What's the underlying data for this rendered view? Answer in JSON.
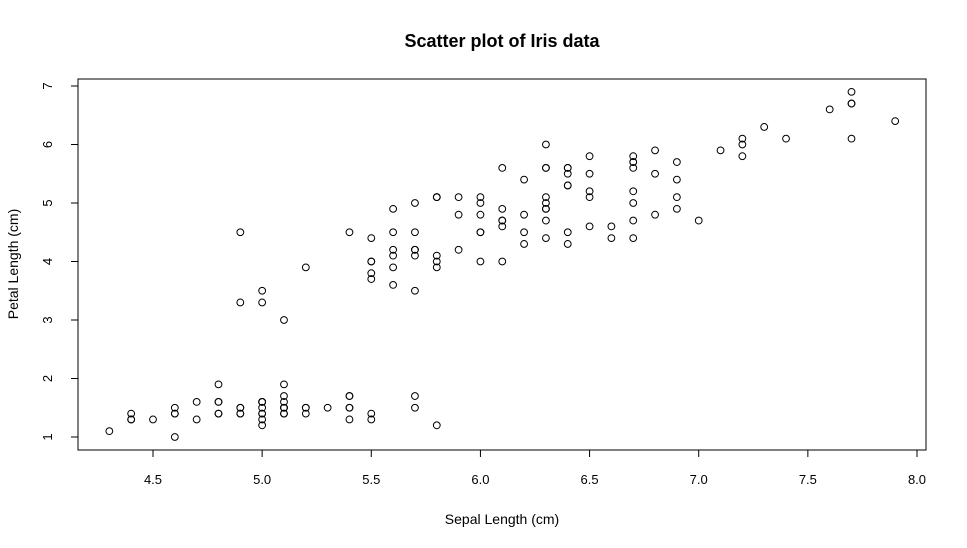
{
  "chart_data": {
    "type": "scatter",
    "title": "Scatter plot of Iris data",
    "xlabel": "Sepal Length (cm)",
    "ylabel": "Petal Length (cm)",
    "xlim": [
      4.3,
      7.9
    ],
    "ylim": [
      1.0,
      6.9
    ],
    "x_ticks": [
      "4.5",
      "5.0",
      "5.5",
      "6.0",
      "6.5",
      "7.0",
      "7.5",
      "8.0"
    ],
    "y_ticks": [
      "1",
      "2",
      "3",
      "4",
      "5",
      "6",
      "7"
    ],
    "grid": false,
    "legend": "none",
    "points": [
      [
        5.1,
        1.4
      ],
      [
        4.9,
        1.4
      ],
      [
        4.7,
        1.3
      ],
      [
        4.6,
        1.5
      ],
      [
        5.0,
        1.4
      ],
      [
        5.4,
        1.7
      ],
      [
        4.6,
        1.4
      ],
      [
        5.0,
        1.5
      ],
      [
        4.4,
        1.4
      ],
      [
        4.9,
        1.5
      ],
      [
        5.4,
        1.5
      ],
      [
        4.8,
        1.6
      ],
      [
        4.8,
        1.4
      ],
      [
        4.3,
        1.1
      ],
      [
        5.8,
        1.2
      ],
      [
        5.7,
        1.5
      ],
      [
        5.4,
        1.3
      ],
      [
        5.1,
        1.4
      ],
      [
        5.7,
        1.7
      ],
      [
        5.1,
        1.5
      ],
      [
        5.4,
        1.7
      ],
      [
        5.1,
        1.5
      ],
      [
        4.6,
        1.0
      ],
      [
        5.1,
        1.7
      ],
      [
        4.8,
        1.9
      ],
      [
        5.0,
        1.6
      ],
      [
        5.0,
        1.6
      ],
      [
        5.2,
        1.5
      ],
      [
        5.2,
        1.4
      ],
      [
        4.7,
        1.6
      ],
      [
        4.8,
        1.6
      ],
      [
        5.4,
        1.5
      ],
      [
        5.2,
        1.5
      ],
      [
        5.5,
        1.4
      ],
      [
        4.9,
        1.5
      ],
      [
        5.0,
        1.2
      ],
      [
        5.5,
        1.3
      ],
      [
        4.9,
        1.4
      ],
      [
        4.4,
        1.3
      ],
      [
        5.1,
        1.5
      ],
      [
        5.0,
        1.3
      ],
      [
        4.5,
        1.3
      ],
      [
        4.4,
        1.3
      ],
      [
        5.0,
        1.6
      ],
      [
        5.1,
        1.9
      ],
      [
        4.8,
        1.4
      ],
      [
        5.1,
        1.6
      ],
      [
        4.6,
        1.4
      ],
      [
        5.3,
        1.5
      ],
      [
        5.0,
        1.4
      ],
      [
        7.0,
        4.7
      ],
      [
        6.4,
        4.5
      ],
      [
        6.9,
        4.9
      ],
      [
        5.5,
        4.0
      ],
      [
        6.5,
        4.6
      ],
      [
        5.7,
        4.5
      ],
      [
        6.3,
        4.7
      ],
      [
        4.9,
        3.3
      ],
      [
        6.6,
        4.6
      ],
      [
        5.2,
        3.9
      ],
      [
        5.0,
        3.5
      ],
      [
        5.9,
        4.2
      ],
      [
        6.0,
        4.0
      ],
      [
        6.1,
        4.7
      ],
      [
        5.6,
        3.6
      ],
      [
        6.7,
        4.4
      ],
      [
        5.6,
        4.5
      ],
      [
        5.8,
        4.1
      ],
      [
        6.2,
        4.5
      ],
      [
        5.6,
        3.9
      ],
      [
        5.9,
        4.8
      ],
      [
        6.1,
        4.0
      ],
      [
        6.3,
        4.9
      ],
      [
        6.1,
        4.7
      ],
      [
        6.4,
        4.3
      ],
      [
        6.6,
        4.4
      ],
      [
        6.8,
        4.8
      ],
      [
        6.7,
        5.0
      ],
      [
        6.0,
        4.5
      ],
      [
        5.7,
        3.5
      ],
      [
        5.5,
        3.8
      ],
      [
        5.5,
        3.7
      ],
      [
        5.8,
        3.9
      ],
      [
        6.0,
        5.1
      ],
      [
        5.4,
        4.5
      ],
      [
        6.0,
        4.5
      ],
      [
        6.7,
        4.7
      ],
      [
        6.3,
        4.4
      ],
      [
        5.6,
        4.1
      ],
      [
        5.5,
        4.0
      ],
      [
        5.5,
        4.4
      ],
      [
        6.1,
        4.6
      ],
      [
        5.8,
        4.0
      ],
      [
        5.0,
        3.3
      ],
      [
        5.6,
        4.2
      ],
      [
        5.7,
        4.2
      ],
      [
        5.7,
        4.2
      ],
      [
        6.2,
        4.3
      ],
      [
        5.1,
        3.0
      ],
      [
        5.7,
        4.1
      ],
      [
        6.3,
        6.0
      ],
      [
        5.8,
        5.1
      ],
      [
        7.1,
        5.9
      ],
      [
        6.3,
        5.6
      ],
      [
        6.5,
        5.8
      ],
      [
        7.6,
        6.6
      ],
      [
        4.9,
        4.5
      ],
      [
        7.3,
        6.3
      ],
      [
        6.7,
        5.8
      ],
      [
        7.2,
        6.1
      ],
      [
        6.5,
        5.1
      ],
      [
        6.4,
        5.3
      ],
      [
        6.8,
        5.5
      ],
      [
        5.7,
        5.0
      ],
      [
        5.8,
        5.1
      ],
      [
        6.4,
        5.3
      ],
      [
        6.5,
        5.5
      ],
      [
        7.7,
        6.7
      ],
      [
        7.7,
        6.9
      ],
      [
        6.0,
        5.0
      ],
      [
        6.9,
        5.7
      ],
      [
        5.6,
        4.9
      ],
      [
        7.7,
        6.7
      ],
      [
        6.3,
        4.9
      ],
      [
        6.7,
        5.7
      ],
      [
        7.2,
        6.0
      ],
      [
        6.2,
        4.8
      ],
      [
        6.1,
        4.9
      ],
      [
        6.4,
        5.6
      ],
      [
        7.2,
        5.8
      ],
      [
        7.4,
        6.1
      ],
      [
        7.9,
        6.4
      ],
      [
        6.4,
        5.6
      ],
      [
        6.3,
        5.1
      ],
      [
        6.1,
        5.6
      ],
      [
        7.7,
        6.1
      ],
      [
        6.3,
        5.6
      ],
      [
        6.4,
        5.5
      ],
      [
        6.0,
        4.8
      ],
      [
        6.9,
        5.4
      ],
      [
        6.7,
        5.6
      ],
      [
        6.9,
        5.1
      ],
      [
        5.8,
        5.1
      ],
      [
        6.8,
        5.9
      ],
      [
        6.7,
        5.7
      ],
      [
        6.7,
        5.2
      ],
      [
        6.3,
        5.0
      ],
      [
        6.5,
        5.2
      ],
      [
        6.2,
        5.4
      ],
      [
        5.9,
        5.1
      ]
    ]
  }
}
